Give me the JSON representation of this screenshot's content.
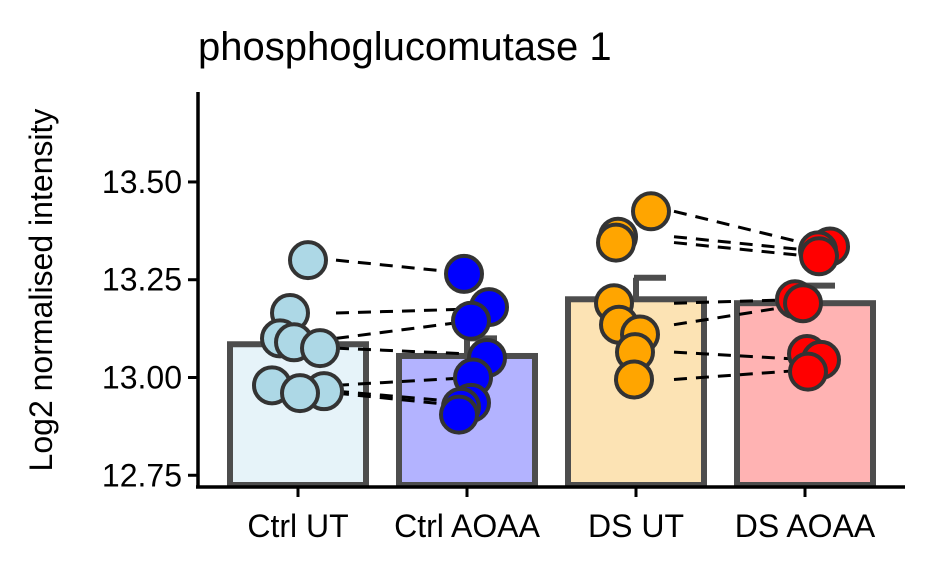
{
  "chart_data": {
    "type": "bar",
    "title": "phosphoglucomutase 1",
    "xlabel": "",
    "ylabel": "Log2 normalised intensity",
    "ylim": [
      12.72,
      13.73
    ],
    "yticks": [
      12.75,
      13.0,
      13.25,
      13.5
    ],
    "ytick_labels": [
      "12.75",
      "13.00",
      "13.25",
      "13.50"
    ],
    "categories": [
      "Ctrl UT",
      "Ctrl AOAA",
      "DS UT",
      "DS AOAA"
    ],
    "values": [
      13.085,
      13.055,
      13.2,
      13.19
    ],
    "error_upper": [
      null,
      13.1,
      13.255,
      13.235
    ],
    "bar_fill_colors": [
      "#e6f3f9",
      "#b3b3ff",
      "#fce3b4",
      "#ffb3b3"
    ],
    "point_colors": [
      "#add8e6",
      "#0000ff",
      "#ffa500",
      "#ff0000"
    ],
    "bar_outline_color": "#4d4d4d",
    "points": [
      [
        13.3,
        13.165,
        13.1,
        13.09,
        13.075,
        12.98,
        12.965,
        12.96
      ],
      [
        13.265,
        13.18,
        13.145,
        13.05,
        13.0,
        12.935,
        12.925,
        12.905
      ],
      [
        13.425,
        13.36,
        13.345,
        13.19,
        13.135,
        13.11,
        13.065,
        12.995
      ],
      [
        13.335,
        13.325,
        13.31,
        13.2,
        13.19,
        13.06,
        13.045,
        13.015
      ]
    ],
    "paired_lines": [
      [
        0,
        1,
        [
          13.3,
          13.265
        ]
      ],
      [
        0,
        1,
        [
          13.165,
          13.175
        ]
      ],
      [
        0,
        1,
        [
          13.1,
          13.145
        ]
      ],
      [
        0,
        1,
        [
          13.075,
          13.06
        ]
      ],
      [
        0,
        1,
        [
          12.98,
          13.0
        ]
      ],
      [
        0,
        1,
        [
          12.965,
          12.935
        ]
      ],
      [
        0,
        1,
        [
          12.96,
          12.925
        ]
      ],
      [
        2,
        3,
        [
          13.425,
          13.34
        ]
      ],
      [
        2,
        3,
        [
          13.36,
          13.325
        ]
      ],
      [
        2,
        3,
        [
          13.345,
          13.31
        ]
      ],
      [
        2,
        3,
        [
          13.19,
          13.2
        ]
      ],
      [
        2,
        3,
        [
          13.135,
          13.19
        ]
      ],
      [
        2,
        3,
        [
          13.065,
          13.045
        ]
      ],
      [
        2,
        3,
        [
          12.995,
          13.02
        ]
      ]
    ],
    "grid": false,
    "legend": "none"
  }
}
